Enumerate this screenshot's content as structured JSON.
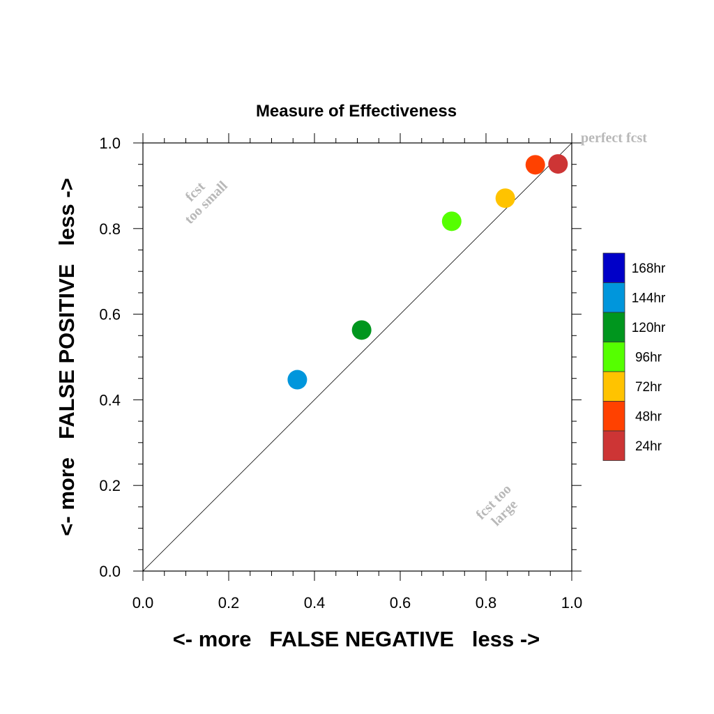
{
  "chart_data": {
    "type": "scatter",
    "title": "Measure of Effectiveness",
    "xlabel": "<- more   FALSE NEGATIVE   less ->",
    "ylabel": "<- more   FALSE POSITIVE   less ->",
    "xlim": [
      0.0,
      1.0
    ],
    "ylim": [
      0.0,
      1.0
    ],
    "x_ticks": [
      "0.0",
      "0.2",
      "0.4",
      "0.6",
      "0.8",
      "1.0"
    ],
    "y_ticks": [
      "0.0",
      "0.2",
      "0.4",
      "0.6",
      "0.8",
      "1.0"
    ],
    "grid": false,
    "diagonal_line": true,
    "annotations": {
      "perfect": "perfect fcst",
      "too_small_line1": "fcst",
      "too_small_line2": "too small",
      "too_large_line1": "fcst too",
      "too_large_line2": "large"
    },
    "legend_placement": "right",
    "legend": [
      {
        "label": "168hr",
        "color": "#0000c8"
      },
      {
        "label": "144hr",
        "color": "#0096dc"
      },
      {
        "label": "120hr",
        "color": "#00961e"
      },
      {
        "label": "96hr",
        "color": "#55ff00"
      },
      {
        "label": "72hr",
        "color": "#ffc300"
      },
      {
        "label": "48hr",
        "color": "#ff4100"
      },
      {
        "label": "24hr",
        "color": "#cd3535"
      }
    ],
    "series": [
      {
        "name": "144hr",
        "x": 0.36,
        "y": 0.447,
        "color": "#0096dc"
      },
      {
        "name": "120hr",
        "x": 0.51,
        "y": 0.563,
        "color": "#00961e"
      },
      {
        "name": "96hr",
        "x": 0.72,
        "y": 0.817,
        "color": "#55ff00"
      },
      {
        "name": "72hr",
        "x": 0.845,
        "y": 0.871,
        "color": "#ffc300"
      },
      {
        "name": "48hr",
        "x": 0.915,
        "y": 0.949,
        "color": "#ff4100"
      },
      {
        "name": "24hr",
        "x": 0.968,
        "y": 0.951,
        "color": "#cd3535"
      }
    ]
  }
}
